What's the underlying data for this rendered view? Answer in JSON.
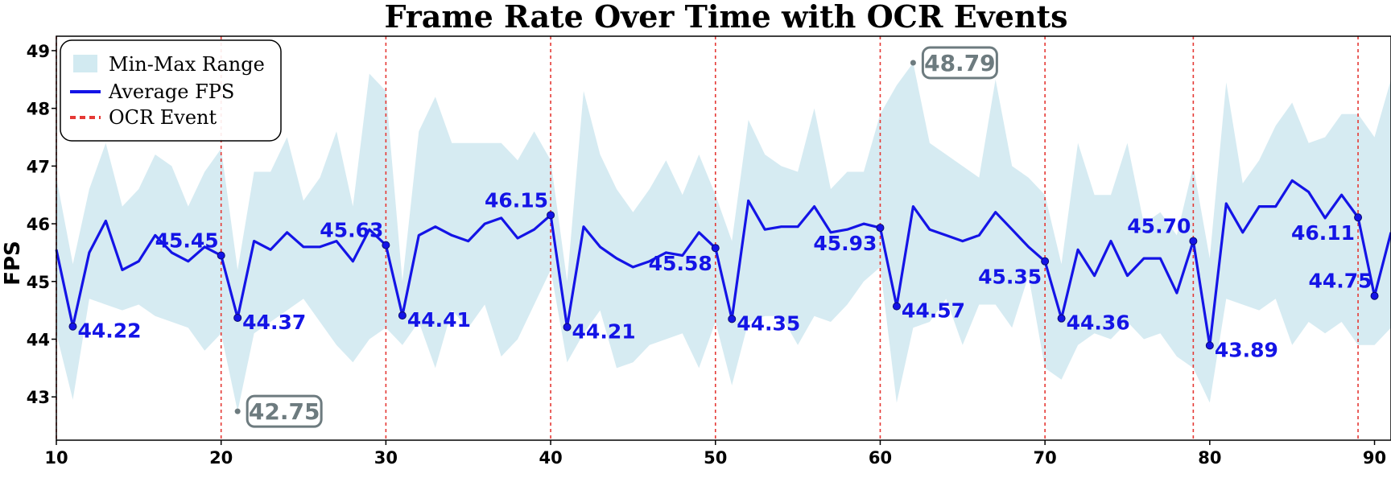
{
  "colors": {
    "band": "#add8e6",
    "avg_line": "#1414e6",
    "ocr_line": "#e53935",
    "extreme": "#6d7b7f"
  },
  "chart_data": {
    "type": "line",
    "title": "Frame Rate Over Time with OCR Events",
    "xlabel": "",
    "ylabel": "FPS",
    "xlim": [
      10,
      91
    ],
    "ylim": [
      42.25,
      49.25
    ],
    "xticks": [
      "10",
      "20",
      "30",
      "40",
      "50",
      "60",
      "70",
      "80",
      "90"
    ],
    "yticks": [
      "43",
      "44",
      "45",
      "46",
      "47",
      "48",
      "49"
    ],
    "grid": false,
    "legend_position": "top-left",
    "legend": [
      "Min-Max Range",
      "Average FPS",
      "OCR Event"
    ],
    "x": [
      10,
      11,
      12,
      13,
      14,
      15,
      16,
      17,
      18,
      19,
      20,
      21,
      22,
      23,
      24,
      25,
      26,
      27,
      28,
      29,
      30,
      31,
      32,
      33,
      34,
      35,
      36,
      37,
      38,
      39,
      40,
      41,
      42,
      43,
      44,
      45,
      46,
      47,
      48,
      49,
      50,
      51,
      52,
      53,
      54,
      55,
      56,
      57,
      58,
      59,
      60,
      61,
      62,
      63,
      64,
      65,
      66,
      67,
      68,
      69,
      70,
      71,
      72,
      73,
      74,
      75,
      76,
      77,
      78,
      79,
      80,
      81,
      82,
      83,
      84,
      85,
      86,
      87,
      88,
      89,
      90,
      91
    ],
    "series": [
      {
        "name": "Average FPS",
        "values": [
          45.55,
          44.22,
          45.5,
          46.05,
          45.2,
          45.35,
          45.8,
          45.5,
          45.35,
          45.6,
          45.45,
          44.37,
          45.7,
          45.55,
          45.85,
          45.6,
          45.6,
          45.7,
          45.35,
          45.9,
          45.63,
          44.41,
          45.8,
          45.95,
          45.8,
          45.7,
          46.0,
          46.1,
          45.75,
          45.9,
          46.15,
          44.21,
          45.95,
          45.6,
          45.4,
          45.25,
          45.35,
          45.5,
          45.45,
          45.85,
          45.58,
          44.35,
          46.4,
          45.9,
          45.95,
          45.95,
          46.3,
          45.85,
          45.9,
          46.0,
          45.93,
          44.57,
          46.3,
          45.9,
          45.8,
          45.7,
          45.8,
          46.2,
          45.9,
          45.6,
          45.35,
          44.36,
          45.55,
          45.1,
          45.7,
          45.1,
          45.4,
          45.4,
          44.8,
          45.7,
          43.89,
          46.35,
          45.85,
          46.3,
          46.3,
          46.75,
          46.55,
          46.1,
          46.5,
          46.11,
          44.75,
          45.85
        ]
      },
      {
        "name": "Max",
        "values": [
          46.8,
          45.3,
          46.6,
          47.4,
          46.3,
          46.6,
          47.2,
          47.0,
          46.3,
          46.9,
          47.3,
          45.2,
          46.9,
          46.9,
          47.5,
          46.4,
          46.8,
          47.6,
          46.3,
          48.6,
          48.3,
          45.0,
          47.6,
          48.2,
          47.4,
          47.4,
          47.4,
          47.4,
          47.1,
          47.6,
          47.1,
          45.0,
          48.3,
          47.2,
          46.6,
          46.2,
          46.6,
          47.1,
          46.5,
          47.2,
          46.5,
          45.7,
          47.8,
          47.2,
          47.0,
          46.9,
          48.0,
          46.6,
          46.9,
          46.9,
          47.9,
          48.4,
          48.79,
          47.4,
          47.2,
          47.0,
          46.8,
          48.5,
          47.0,
          46.8,
          46.5,
          45.3,
          47.4,
          46.5,
          46.5,
          47.4,
          46.0,
          46.2,
          45.8,
          47.0,
          45.4,
          48.45,
          46.7,
          47.1,
          47.7,
          48.1,
          47.4,
          47.5,
          47.9,
          47.9,
          47.5,
          48.5
        ]
      },
      {
        "name": "Min",
        "values": [
          44.1,
          42.95,
          44.7,
          44.6,
          44.5,
          44.6,
          44.4,
          44.3,
          44.2,
          43.8,
          44.1,
          42.75,
          44.1,
          44.3,
          44.5,
          44.7,
          44.3,
          43.9,
          43.6,
          44.0,
          44.2,
          43.9,
          44.3,
          43.5,
          44.5,
          44.2,
          44.6,
          43.7,
          44.0,
          44.6,
          45.2,
          43.6,
          44.1,
          44.5,
          43.5,
          43.6,
          43.9,
          44.0,
          44.1,
          43.5,
          44.3,
          43.2,
          44.3,
          44.4,
          44.4,
          43.9,
          44.4,
          44.3,
          44.6,
          45.0,
          45.25,
          42.9,
          44.2,
          44.3,
          44.7,
          43.9,
          44.6,
          44.6,
          44.2,
          45.1,
          43.5,
          43.3,
          43.9,
          44.1,
          44.0,
          44.3,
          44.0,
          44.1,
          43.7,
          43.5,
          42.9,
          44.7,
          44.6,
          44.5,
          44.7,
          43.9,
          44.3,
          44.1,
          44.3,
          43.9,
          43.9,
          44.2
        ]
      }
    ],
    "ocr_events": [
      10,
      20,
      30,
      40,
      50,
      60,
      70,
      79,
      89
    ],
    "labeled_points": [
      {
        "x": 11,
        "y": 44.22,
        "label": "44.22",
        "pos": "right"
      },
      {
        "x": 20,
        "y": 45.45,
        "label": "45.45",
        "pos": "left"
      },
      {
        "x": 21,
        "y": 44.37,
        "label": "44.37",
        "pos": "right"
      },
      {
        "x": 30,
        "y": 45.63,
        "label": "45.63",
        "pos": "left"
      },
      {
        "x": 31,
        "y": 44.41,
        "label": "44.41",
        "pos": "right"
      },
      {
        "x": 40,
        "y": 46.15,
        "label": "46.15",
        "pos": "left"
      },
      {
        "x": 41,
        "y": 44.21,
        "label": "44.21",
        "pos": "right"
      },
      {
        "x": 50,
        "y": 45.58,
        "label": "45.58",
        "pos": "belowleft"
      },
      {
        "x": 51,
        "y": 44.35,
        "label": "44.35",
        "pos": "right"
      },
      {
        "x": 60,
        "y": 45.93,
        "label": "45.93",
        "pos": "belowleft"
      },
      {
        "x": 61,
        "y": 44.57,
        "label": "44.57",
        "pos": "right"
      },
      {
        "x": 70,
        "y": 45.35,
        "label": "45.35",
        "pos": "belowleft"
      },
      {
        "x": 71,
        "y": 44.36,
        "label": "44.36",
        "pos": "right"
      },
      {
        "x": 79,
        "y": 45.7,
        "label": "45.70",
        "pos": "left"
      },
      {
        "x": 80,
        "y": 43.89,
        "label": "43.89",
        "pos": "right"
      },
      {
        "x": 89,
        "y": 46.11,
        "label": "46.11",
        "pos": "belowleft"
      },
      {
        "x": 90,
        "y": 44.75,
        "label": "44.75",
        "pos": "left"
      }
    ],
    "extremes": [
      {
        "x": 21,
        "y": 42.75,
        "label": "42.75"
      },
      {
        "x": 62,
        "y": 48.79,
        "label": "48.79"
      }
    ]
  }
}
